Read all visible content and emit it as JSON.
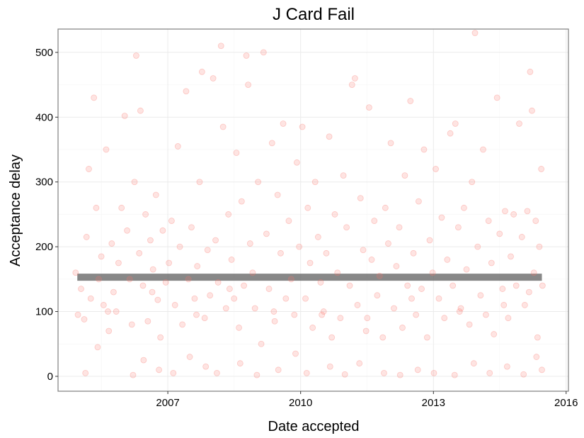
{
  "chart_data": {
    "type": "scatter",
    "title": "J Card Fail",
    "xlabel": "Date accepted",
    "ylabel": "Acceptance delay",
    "xlim": [
      "2004-07-09",
      "2016-01-20"
    ],
    "ylim": [
      -23,
      536
    ],
    "x_ticks": [
      "2007",
      "2010",
      "2013",
      "2016"
    ],
    "y_ticks": [
      "0",
      "100",
      "200",
      "300",
      "400",
      "500"
    ],
    "grid": true,
    "legend": "none",
    "point_color": "#F8766D",
    "point_alpha": 0.2,
    "reference_line": {
      "y": 153,
      "x_start": "2004-12-15",
      "x_end": "2015-06-15",
      "color": "#555555",
      "alpha": 0.7
    },
    "series": [
      {
        "points": [
          [
            "2004-12-01",
            160
          ],
          [
            "2004-12-20",
            95
          ],
          [
            "2005-01-15",
            135
          ],
          [
            "2005-02-10",
            88
          ],
          [
            "2005-03-01",
            215
          ],
          [
            "2005-03-20",
            320
          ],
          [
            "2005-04-05",
            120
          ],
          [
            "2005-05-01",
            430
          ],
          [
            "2005-05-20",
            260
          ],
          [
            "2005-06-10",
            150
          ],
          [
            "2005-07-01",
            185
          ],
          [
            "2005-07-20",
            110
          ],
          [
            "2005-08-10",
            350
          ],
          [
            "2005-09-01",
            70
          ],
          [
            "2005-09-25",
            205
          ],
          [
            "2005-10-10",
            130
          ],
          [
            "2005-11-01",
            100
          ],
          [
            "2005-11-20",
            175
          ],
          [
            "2005-12-15",
            260
          ],
          [
            "2006-01-10",
            402
          ],
          [
            "2006-01-30",
            225
          ],
          [
            "2006-02-20",
            150
          ],
          [
            "2006-03-10",
            80
          ],
          [
            "2006-04-01",
            300
          ],
          [
            "2006-04-15",
            495
          ],
          [
            "2006-05-10",
            190
          ],
          [
            "2006-05-20",
            410
          ],
          [
            "2006-06-10",
            140
          ],
          [
            "2006-07-01",
            250
          ],
          [
            "2006-07-20",
            85
          ],
          [
            "2006-08-10",
            210
          ],
          [
            "2006-09-01",
            165
          ],
          [
            "2006-09-25",
            280
          ],
          [
            "2006-10-10",
            118
          ],
          [
            "2006-11-01",
            60
          ],
          [
            "2006-11-20",
            225
          ],
          [
            "2006-12-15",
            145
          ],
          [
            "2007-01-10",
            175
          ],
          [
            "2007-02-01",
            240
          ],
          [
            "2007-03-01",
            110
          ],
          [
            "2007-03-25",
            355
          ],
          [
            "2007-04-10",
            200
          ],
          [
            "2007-05-01",
            80
          ],
          [
            "2007-06-01",
            440
          ],
          [
            "2007-06-20",
            150
          ],
          [
            "2007-07-15",
            230
          ],
          [
            "2007-08-10",
            120
          ],
          [
            "2007-09-01",
            170
          ],
          [
            "2007-09-20",
            300
          ],
          [
            "2007-10-10",
            470
          ],
          [
            "2007-11-01",
            90
          ],
          [
            "2007-11-25",
            195
          ],
          [
            "2007-12-15",
            125
          ],
          [
            "2008-01-10",
            460
          ],
          [
            "2008-01-30",
            210
          ],
          [
            "2008-02-20",
            145
          ],
          [
            "2008-03-15",
            510
          ],
          [
            "2008-04-01",
            385
          ],
          [
            "2008-04-25",
            105
          ],
          [
            "2008-05-15",
            250
          ],
          [
            "2008-06-10",
            180
          ],
          [
            "2008-07-01",
            120
          ],
          [
            "2008-07-20",
            345
          ],
          [
            "2008-08-10",
            75
          ],
          [
            "2008-09-01",
            270
          ],
          [
            "2008-09-20",
            140
          ],
          [
            "2008-10-10",
            495
          ],
          [
            "2008-10-25",
            450
          ],
          [
            "2008-11-10",
            205
          ],
          [
            "2008-12-01",
            160
          ],
          [
            "2008-12-20",
            105
          ],
          [
            "2009-01-15",
            300
          ],
          [
            "2009-02-10",
            50
          ],
          [
            "2009-03-01",
            500
          ],
          [
            "2009-03-25",
            220
          ],
          [
            "2009-04-15",
            135
          ],
          [
            "2009-05-10",
            360
          ],
          [
            "2009-06-01",
            85
          ],
          [
            "2009-06-25",
            280
          ],
          [
            "2009-07-20",
            190
          ],
          [
            "2009-08-10",
            390
          ],
          [
            "2009-09-01",
            120
          ],
          [
            "2009-09-25",
            240
          ],
          [
            "2009-10-15",
            150
          ],
          [
            "2009-11-10",
            95
          ],
          [
            "2009-12-01",
            330
          ],
          [
            "2009-12-20",
            200
          ],
          [
            "2010-01-15",
            385
          ],
          [
            "2010-02-10",
            120
          ],
          [
            "2010-03-01",
            260
          ],
          [
            "2010-03-20",
            175
          ],
          [
            "2010-04-10",
            75
          ],
          [
            "2010-05-01",
            300
          ],
          [
            "2010-05-25",
            215
          ],
          [
            "2010-06-15",
            145
          ],
          [
            "2010-07-10",
            100
          ],
          [
            "2010-08-01",
            190
          ],
          [
            "2010-08-25",
            370
          ],
          [
            "2010-09-15",
            60
          ],
          [
            "2010-10-10",
            250
          ],
          [
            "2010-11-01",
            160
          ],
          [
            "2010-11-25",
            90
          ],
          [
            "2010-12-20",
            310
          ],
          [
            "2011-01-15",
            230
          ],
          [
            "2011-02-10",
            140
          ],
          [
            "2011-03-01",
            450
          ],
          [
            "2011-03-25",
            460
          ],
          [
            "2011-04-15",
            110
          ],
          [
            "2011-05-10",
            275
          ],
          [
            "2011-06-01",
            195
          ],
          [
            "2011-06-25",
            70
          ],
          [
            "2011-07-20",
            415
          ],
          [
            "2011-08-10",
            180
          ],
          [
            "2011-09-01",
            240
          ],
          [
            "2011-09-25",
            125
          ],
          [
            "2011-10-15",
            155
          ],
          [
            "2011-11-10",
            60
          ],
          [
            "2011-12-01",
            260
          ],
          [
            "2011-12-25",
            205
          ],
          [
            "2012-01-15",
            360
          ],
          [
            "2012-02-10",
            105
          ],
          [
            "2012-03-01",
            170
          ],
          [
            "2012-03-25",
            230
          ],
          [
            "2012-04-20",
            75
          ],
          [
            "2012-05-10",
            310
          ],
          [
            "2012-06-01",
            140
          ],
          [
            "2012-06-25",
            425
          ],
          [
            "2012-07-20",
            190
          ],
          [
            "2012-08-10",
            95
          ],
          [
            "2012-09-01",
            270
          ],
          [
            "2012-09-25",
            135
          ],
          [
            "2012-10-15",
            350
          ],
          [
            "2012-11-10",
            60
          ],
          [
            "2012-12-01",
            210
          ],
          [
            "2012-12-25",
            160
          ],
          [
            "2013-01-20",
            320
          ],
          [
            "2013-02-15",
            120
          ],
          [
            "2013-03-10",
            245
          ],
          [
            "2013-04-01",
            90
          ],
          [
            "2013-04-25",
            180
          ],
          [
            "2013-05-20",
            375
          ],
          [
            "2013-06-10",
            140
          ],
          [
            "2013-07-01",
            390
          ],
          [
            "2013-07-25",
            230
          ],
          [
            "2013-08-15",
            105
          ],
          [
            "2013-09-10",
            260
          ],
          [
            "2013-10-01",
            165
          ],
          [
            "2013-10-25",
            80
          ],
          [
            "2013-11-15",
            300
          ],
          [
            "2013-12-10",
            530
          ],
          [
            "2014-01-01",
            200
          ],
          [
            "2014-01-25",
            125
          ],
          [
            "2014-02-15",
            350
          ],
          [
            "2014-03-10",
            95
          ],
          [
            "2014-04-01",
            240
          ],
          [
            "2014-04-25",
            175
          ],
          [
            "2014-05-15",
            65
          ],
          [
            "2014-06-10",
            430
          ],
          [
            "2014-07-01",
            220
          ],
          [
            "2014-07-25",
            135
          ],
          [
            "2014-08-15",
            255
          ],
          [
            "2014-09-10",
            90
          ],
          [
            "2014-10-01",
            185
          ],
          [
            "2014-10-25",
            250
          ],
          [
            "2014-11-15",
            140
          ],
          [
            "2014-12-10",
            390
          ],
          [
            "2015-01-01",
            215
          ],
          [
            "2015-01-25",
            110
          ],
          [
            "2015-02-15",
            255
          ],
          [
            "2015-03-10",
            470
          ],
          [
            "2015-03-25",
            410
          ],
          [
            "2015-04-10",
            160
          ],
          [
            "2015-04-25",
            240
          ],
          [
            "2015-05-10",
            60
          ],
          [
            "2015-05-25",
            200
          ],
          [
            "2015-06-10",
            320
          ],
          [
            "2015-06-20",
            140
          ],
          [
            "2005-02-20",
            5
          ],
          [
            "2005-06-01",
            45
          ],
          [
            "2006-03-20",
            2
          ],
          [
            "2006-06-15",
            25
          ],
          [
            "2006-10-20",
            10
          ],
          [
            "2007-02-15",
            5
          ],
          [
            "2007-07-01",
            30
          ],
          [
            "2007-11-10",
            15
          ],
          [
            "2008-02-10",
            5
          ],
          [
            "2008-08-20",
            20
          ],
          [
            "2009-01-05",
            2
          ],
          [
            "2009-07-01",
            10
          ],
          [
            "2009-11-20",
            35
          ],
          [
            "2010-02-20",
            5
          ],
          [
            "2010-09-01",
            15
          ],
          [
            "2011-01-01",
            3
          ],
          [
            "2011-05-01",
            20
          ],
          [
            "2011-11-20",
            5
          ],
          [
            "2012-04-01",
            2
          ],
          [
            "2012-08-25",
            10
          ],
          [
            "2013-01-05",
            5
          ],
          [
            "2013-06-25",
            2
          ],
          [
            "2013-11-30",
            20
          ],
          [
            "2014-04-10",
            5
          ],
          [
            "2014-09-01",
            15
          ],
          [
            "2015-01-15",
            3
          ],
          [
            "2015-05-01",
            30
          ],
          [
            "2015-06-15",
            10
          ],
          [
            "2005-08-25",
            100
          ],
          [
            "2006-08-25",
            130
          ],
          [
            "2007-08-25",
            95
          ],
          [
            "2008-05-25",
            135
          ],
          [
            "2009-05-25",
            100
          ],
          [
            "2010-06-25",
            95
          ],
          [
            "2011-07-05",
            90
          ],
          [
            "2012-07-05",
            120
          ],
          [
            "2013-08-05",
            100
          ],
          [
            "2014-08-05",
            110
          ],
          [
            "2015-03-01",
            130
          ]
        ]
      }
    ]
  }
}
